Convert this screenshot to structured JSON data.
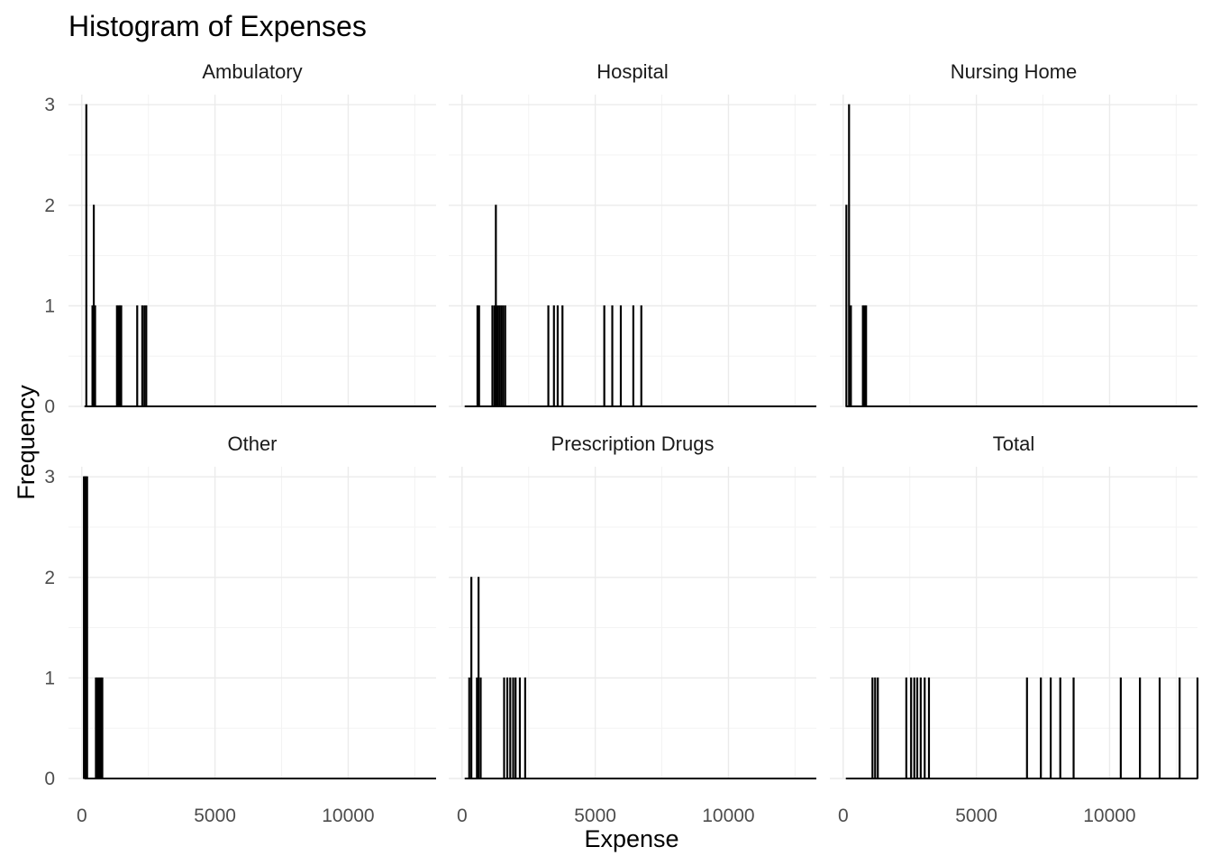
{
  "chart_data": {
    "type": "bar",
    "title": "Histogram of Expenses",
    "xlabel": "Expense",
    "ylabel": "Frequency",
    "xlim": [
      -500,
      13300
    ],
    "ylim": [
      0,
      3.1
    ],
    "x_ticks": [
      "0",
      "5000",
      "10000"
    ],
    "x_tick_values": [
      0,
      5000,
      10000
    ],
    "y_ticks": [
      "0",
      "1",
      "2",
      "3"
    ],
    "y_tick_values": [
      0,
      1,
      2,
      3
    ],
    "grid": true,
    "bin_width": 40,
    "x_range_bins": [
      100,
      13300
    ],
    "bar_color": "#000000",
    "panels": [
      {
        "name": "Ambulatory",
        "bins": [
          [
            150,
            3
          ],
          [
            380,
            1
          ],
          [
            430,
            2
          ],
          [
            480,
            1
          ],
          [
            1300,
            1
          ],
          [
            1360,
            1
          ],
          [
            1410,
            1
          ],
          [
            1460,
            1
          ],
          [
            2060,
            1
          ],
          [
            2250,
            1
          ],
          [
            2330,
            1
          ],
          [
            2400,
            1
          ]
        ]
      },
      {
        "name": "Hospital",
        "bins": [
          [
            560,
            1
          ],
          [
            620,
            1
          ],
          [
            1120,
            1
          ],
          [
            1200,
            1
          ],
          [
            1250,
            2
          ],
          [
            1310,
            1
          ],
          [
            1380,
            1
          ],
          [
            1450,
            1
          ],
          [
            1520,
            1
          ],
          [
            1600,
            1
          ],
          [
            3220,
            1
          ],
          [
            3430,
            1
          ],
          [
            3570,
            1
          ],
          [
            3750,
            1
          ],
          [
            5320,
            1
          ],
          [
            5620,
            1
          ],
          [
            5940,
            1
          ],
          [
            6410,
            1
          ],
          [
            6710,
            1
          ]
        ]
      },
      {
        "name": "Nursing Home",
        "bins": [
          [
            100,
            2
          ],
          [
            200,
            3
          ],
          [
            270,
            1
          ],
          [
            720,
            1
          ],
          [
            780,
            1
          ],
          [
            840,
            1
          ]
        ]
      },
      {
        "name": "Other",
        "bins": [
          [
            60,
            3
          ],
          [
            100,
            3
          ],
          [
            140,
            3
          ],
          [
            180,
            3
          ],
          [
            510,
            1
          ],
          [
            570,
            1
          ],
          [
            630,
            1
          ],
          [
            690,
            1
          ],
          [
            750,
            1
          ]
        ]
      },
      {
        "name": "Prescription Drugs",
        "bins": [
          [
            250,
            1
          ],
          [
            330,
            2
          ],
          [
            540,
            1
          ],
          [
            600,
            2
          ],
          [
            680,
            1
          ],
          [
            1560,
            1
          ],
          [
            1680,
            1
          ],
          [
            1790,
            1
          ],
          [
            1900,
            1
          ],
          [
            1990,
            1
          ],
          [
            2150,
            1
          ],
          [
            2350,
            1
          ]
        ]
      },
      {
        "name": "Total",
        "bins": [
          [
            1080,
            1
          ],
          [
            1180,
            1
          ],
          [
            1280,
            1
          ],
          [
            2350,
            1
          ],
          [
            2530,
            1
          ],
          [
            2650,
            1
          ],
          [
            2760,
            1
          ],
          [
            2890,
            1
          ],
          [
            3040,
            1
          ],
          [
            3200,
            1
          ],
          [
            6880,
            1
          ],
          [
            7400,
            1
          ],
          [
            7770,
            1
          ],
          [
            8130,
            1
          ],
          [
            8630,
            1
          ],
          [
            10400,
            1
          ],
          [
            11120,
            1
          ],
          [
            11860,
            1
          ],
          [
            12610,
            1
          ],
          [
            13280,
            1
          ]
        ]
      }
    ]
  }
}
